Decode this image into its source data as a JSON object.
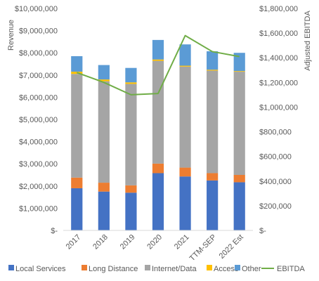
{
  "chart_data": {
    "type": "bar",
    "stacked": true,
    "secondary_axis": true,
    "categories": [
      "2017",
      "2018",
      "2019",
      "2020",
      "2021",
      "TTM-SEP",
      "2022 Est"
    ],
    "series": [
      {
        "name": "Local Services",
        "type": "bar",
        "axis": "left",
        "color": "#4472C4",
        "values": [
          1900000,
          1750000,
          1700000,
          2580000,
          2430000,
          2250000,
          2170000
        ]
      },
      {
        "name": "Long Distance",
        "type": "bar",
        "axis": "left",
        "color": "#ED7D31",
        "values": [
          480000,
          400000,
          330000,
          430000,
          400000,
          330000,
          330000
        ]
      },
      {
        "name": "Internet/Data",
        "type": "bar",
        "axis": "left",
        "color": "#A5A5A5",
        "values": [
          4670000,
          4570000,
          4570000,
          4630000,
          4550000,
          4620000,
          4650000
        ]
      },
      {
        "name": "Access",
        "type": "bar",
        "axis": "left",
        "color": "#FFC000",
        "values": [
          100000,
          80000,
          70000,
          60000,
          40000,
          40000,
          30000
        ]
      },
      {
        "name": "Other",
        "type": "bar",
        "axis": "left",
        "color": "#5B9BD5",
        "values": [
          700000,
          650000,
          650000,
          880000,
          960000,
          830000,
          820000
        ]
      },
      {
        "name": "EBITDA",
        "type": "line",
        "axis": "right",
        "color": "#70AD47",
        "values": [
          1280000,
          1200000,
          1100000,
          1110000,
          1580000,
          1450000,
          1410000
        ]
      }
    ],
    "y_left": {
      "label": "Revenue",
      "min": 0,
      "max": 10000000,
      "step": 1000000,
      "tick_labels": [
        "$-",
        "$1,000,000",
        "$2,000,000",
        "$3,000,000",
        "$4,000,000",
        "$5,000,000",
        "$6,000,000",
        "$7,000,000",
        "$8,000,000",
        "$9,000,000",
        "$10,000,000"
      ]
    },
    "y_right": {
      "label": "Adjusted EBITDA",
      "min": 0,
      "max": 1800000,
      "step": 200000,
      "tick_labels": [
        "$-",
        "$200,000",
        "$400,000",
        "$600,000",
        "$800,000",
        "$1,000,000",
        "$1,200,000",
        "$1,400,000",
        "$1,600,000",
        "$1,800,000"
      ]
    },
    "grid": false,
    "legend_position": "bottom"
  }
}
